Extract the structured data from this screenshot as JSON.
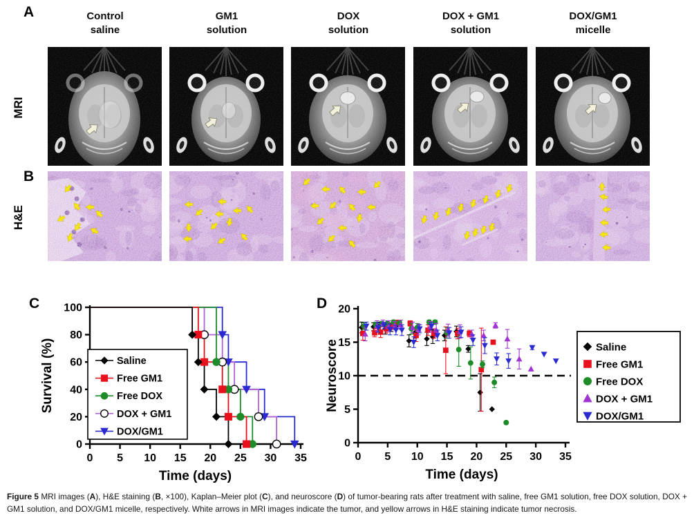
{
  "figure": {
    "panels": {
      "a": {
        "label": "A",
        "row_label": "MRI",
        "columns": [
          {
            "line1": "Control",
            "line2": "saline"
          },
          {
            "line1": "GM1",
            "line2": "solution"
          },
          {
            "line1": "DOX",
            "line2": "solution"
          },
          {
            "line1": "DOX + GM1",
            "line2": "solution"
          },
          {
            "line1": "DOX/GM1",
            "line2": "micelle"
          }
        ],
        "arrow_meaning": "white-arrow-indicates-tumor"
      },
      "b": {
        "label": "B",
        "row_label": "H&E",
        "arrow_meaning": "yellow-arrow-indicates-tumor-necrosis"
      },
      "c": {
        "label": "C"
      },
      "d": {
        "label": "D"
      }
    },
    "caption": {
      "segments": [
        {
          "text": "Figure 5",
          "bold": true
        },
        {
          "text": " MRI images (",
          "bold": false
        },
        {
          "text": "A",
          "bold": true
        },
        {
          "text": "), H&E staining (",
          "bold": false
        },
        {
          "text": "B",
          "bold": true
        },
        {
          "text": ", ×100), Kaplan–Meier plot (",
          "bold": false
        },
        {
          "text": "C",
          "bold": true
        },
        {
          "text": "), and neuroscore (",
          "bold": false
        },
        {
          "text": "D",
          "bold": true
        },
        {
          "text": ") of tumor-bearing rats after treatment with saline, free GM1 solution, free DOX solution, DOX + GM1 solution, and DOX/GM1 micelle, respectively. White arrows in MRI images indicate the tumor, and yellow arrows in H&E staining indicate tumor necrosis.",
          "bold": false
        }
      ]
    }
  },
  "chart_data": [
    {
      "panel": "C",
      "type": "line",
      "subtype": "kaplan-meier-step",
      "title": "",
      "xlabel": "Time (days)",
      "ylabel": "Survival (%)",
      "xlim": [
        0,
        35
      ],
      "ylim": [
        0,
        100
      ],
      "xticks": [
        0,
        5,
        10,
        15,
        20,
        25,
        30,
        35
      ],
      "yticks": [
        0,
        20,
        40,
        60,
        80,
        100
      ],
      "grid": false,
      "legend_position": "inside-left",
      "series": [
        {
          "name": "Saline",
          "color": "#000000",
          "marker": "diamond",
          "points": [
            [
              17,
              80
            ],
            [
              18,
              60
            ],
            [
              19,
              40
            ],
            [
              21,
              20
            ],
            [
              23,
              0
            ]
          ]
        },
        {
          "name": "Free GM1",
          "color": "#e8101c",
          "marker": "square",
          "points": [
            [
              18,
              80
            ],
            [
              19,
              60
            ],
            [
              22,
              40
            ],
            [
              23,
              20
            ],
            [
              26,
              0
            ]
          ]
        },
        {
          "name": "Free DOX",
          "color": "#1d8c28",
          "marker": "circle",
          "points": [
            [
              21,
              60
            ],
            [
              23,
              40
            ],
            [
              25,
              20
            ],
            [
              27,
              0
            ]
          ]
        },
        {
          "name": "DOX + GM1",
          "color": "#b163d6",
          "marker": "circle-open",
          "marker_color": "#000000",
          "points": [
            [
              19,
              80
            ],
            [
              22,
              60
            ],
            [
              24,
              40
            ],
            [
              28,
              20
            ],
            [
              31,
              0
            ]
          ]
        },
        {
          "name": "DOX/GM1",
          "color": "#2a2ad0",
          "marker": "triangle-down",
          "points": [
            [
              22,
              80
            ],
            [
              23,
              60
            ],
            [
              26,
              40
            ],
            [
              29,
              20
            ],
            [
              34,
              0
            ]
          ]
        }
      ]
    },
    {
      "panel": "D",
      "type": "scatter",
      "subtype": "mean-with-error-bars",
      "title": "",
      "xlabel": "Time (days)",
      "ylabel": "Neuroscore",
      "xlim": [
        0,
        35
      ],
      "ylim": [
        0,
        20
      ],
      "xticks": [
        0,
        5,
        10,
        15,
        20,
        25,
        30,
        35
      ],
      "yticks": [
        0,
        5,
        10,
        15,
        20
      ],
      "dashed_reference_line_y": 10,
      "grid": false,
      "legend_position": "outside-right",
      "series": [
        {
          "name": "Saline",
          "color": "#000000",
          "marker": "diamond",
          "points": [
            [
              1,
              17.2,
              0.8
            ],
            [
              3,
              17.3,
              0.6
            ],
            [
              4,
              17.4,
              0.6
            ],
            [
              5,
              17.0,
              0.8
            ],
            [
              6,
              17.2,
              0.6
            ],
            [
              7,
              17.6,
              0.5
            ],
            [
              9,
              15.2,
              0.9
            ],
            [
              10,
              16.4,
              0.8
            ],
            [
              12,
              15.5,
              1.0
            ],
            [
              13,
              15.8,
              1.0
            ],
            [
              15,
              16.0,
              0.8
            ],
            [
              17,
              16.6,
              0.8
            ],
            [
              19,
              14.0,
              0.5
            ],
            [
              21,
              7.5,
              2.8
            ],
            [
              23,
              5.0,
              0
            ]
          ]
        },
        {
          "name": "Free GM1",
          "color": "#e8101c",
          "marker": "square",
          "points": [
            [
              1,
              16.3,
              1.0
            ],
            [
              3,
              16.4,
              0.6
            ],
            [
              4,
              16.5,
              0.8
            ],
            [
              5,
              17.0,
              0.6
            ],
            [
              6,
              17.4,
              0.5
            ],
            [
              7,
              17.9,
              0.4
            ],
            [
              9,
              17.8,
              0.4
            ],
            [
              10,
              16.0,
              0.9
            ],
            [
              12,
              16.8,
              0.8
            ],
            [
              13,
              16.3,
              0.7
            ],
            [
              15,
              13.8,
              3.5
            ],
            [
              17,
              16.3,
              0.8
            ],
            [
              19,
              16.3,
              0.5
            ],
            [
              21,
              10.9,
              6.2
            ],
            [
              23,
              15.0,
              0
            ]
          ]
        },
        {
          "name": "Free DOX",
          "color": "#1d8c28",
          "marker": "circle",
          "points": [
            [
              1,
              17.4,
              0.5
            ],
            [
              3,
              17.6,
              0.4
            ],
            [
              4,
              17.7,
              0.4
            ],
            [
              5,
              17.8,
              0.4
            ],
            [
              6,
              18.0,
              0.3
            ],
            [
              7,
              17.9,
              0.3
            ],
            [
              9,
              17.0,
              0.8
            ],
            [
              10,
              17.2,
              0.6
            ],
            [
              12,
              18.0,
              0.3
            ],
            [
              13,
              18.0,
              0.3
            ],
            [
              15,
              16.4,
              0.8
            ],
            [
              17,
              13.9,
              2.5
            ],
            [
              19,
              11.9,
              2.4
            ],
            [
              21,
              11.7,
              0.5
            ],
            [
              23,
              9.0,
              0.8
            ],
            [
              25,
              3.0,
              0
            ]
          ]
        },
        {
          "name": "DOX + GM1",
          "color": "#a033d1",
          "marker": "triangle-up",
          "points": [
            [
              1,
              16.2,
              1.0
            ],
            [
              3,
              17.4,
              0.8
            ],
            [
              4,
              17.8,
              0.5
            ],
            [
              5,
              17.4,
              0.8
            ],
            [
              6,
              17.5,
              0.6
            ],
            [
              7,
              17.6,
              0.7
            ],
            [
              9,
              17.2,
              0.8
            ],
            [
              10,
              16.9,
              0.8
            ],
            [
              12,
              17.3,
              0.8
            ],
            [
              13,
              16.8,
              1.0
            ],
            [
              15,
              16.8,
              0.9
            ],
            [
              17,
              16.6,
              1.0
            ],
            [
              19,
              16.2,
              0.6
            ],
            [
              21,
              16.0,
              0.8
            ],
            [
              23,
              17.5,
              0.4
            ],
            [
              25,
              15.5,
              1.4
            ],
            [
              27,
              12.5,
              1.5
            ],
            [
              29,
              11.0,
              0
            ]
          ]
        },
        {
          "name": "DOX/GM1",
          "color": "#2a2ad0",
          "marker": "triangle-down",
          "points": [
            [
              1,
              17.4,
              0.6
            ],
            [
              3,
              17.2,
              0.7
            ],
            [
              4,
              17.5,
              0.5
            ],
            [
              5,
              16.9,
              0.8
            ],
            [
              6,
              16.8,
              0.7
            ],
            [
              7,
              16.8,
              0.8
            ],
            [
              9,
              15.0,
              0.8
            ],
            [
              10,
              17.0,
              0.6
            ],
            [
              12,
              17.4,
              0.5
            ],
            [
              13,
              16.0,
              0.8
            ],
            [
              15,
              16.4,
              0.8
            ],
            [
              17,
              16.5,
              0.8
            ],
            [
              19,
              15.3,
              0.8
            ],
            [
              21,
              14.5,
              1.2
            ],
            [
              23,
              12.5,
              0.9
            ],
            [
              25,
              12.2,
              1.1
            ],
            [
              29,
              14.2,
              0.3
            ],
            [
              31,
              13.2,
              0
            ],
            [
              33,
              12.2,
              0
            ]
          ]
        }
      ]
    }
  ]
}
